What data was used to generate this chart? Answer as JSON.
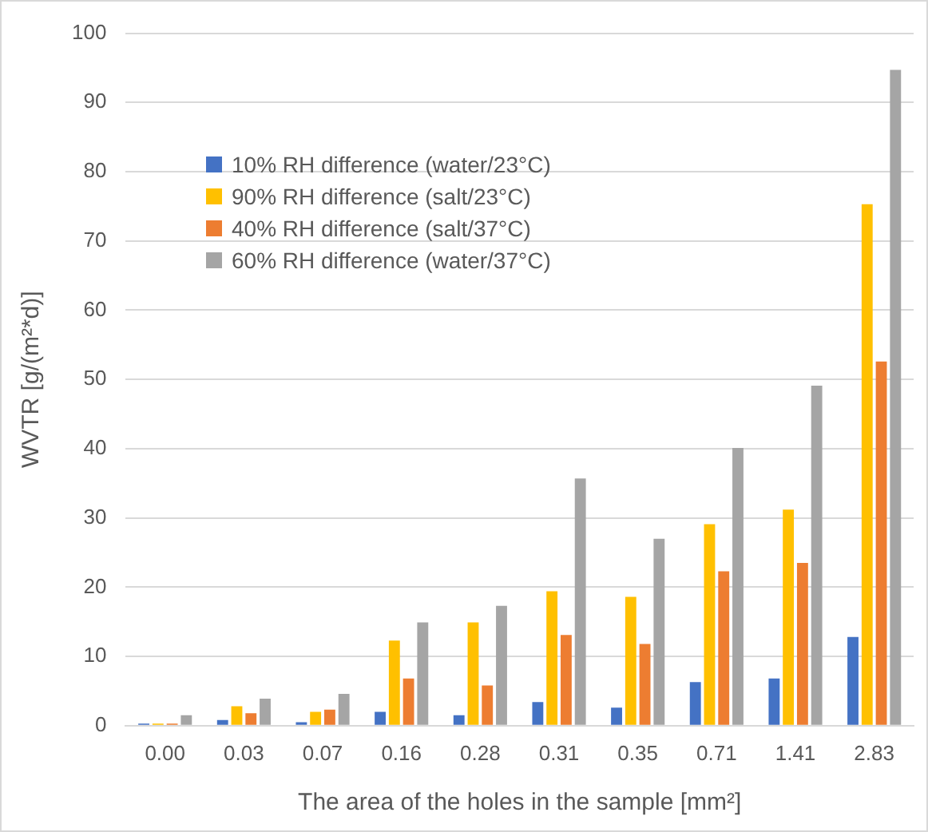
{
  "chart_data": {
    "type": "bar",
    "xlabel": "The area of the holes in the sample [mm²]",
    "ylabel": "WVTR [g/(m²*d)]",
    "categories": [
      "0.00",
      "0.03",
      "0.07",
      "0.16",
      "0.28",
      "0.31",
      "0.35",
      "0.71",
      "1.41",
      "2.83"
    ],
    "series": [
      {
        "name": "10% RH difference (water/23°C)",
        "color": "#4472c4",
        "values": [
          0.3,
          0.8,
          0.5,
          2.0,
          1.5,
          3.4,
          2.6,
          6.3,
          6.8,
          12.8
        ]
      },
      {
        "name": "90% RH difference (salt/23°C)",
        "color": "#ffc000",
        "values": [
          0.3,
          2.8,
          2.0,
          12.3,
          14.9,
          19.4,
          18.6,
          29.1,
          31.2,
          75.3
        ]
      },
      {
        "name": "40% RH difference (salt/37°C)",
        "color": "#ed7d31",
        "values": [
          0.3,
          1.8,
          2.3,
          6.8,
          5.8,
          13.1,
          11.8,
          22.3,
          23.5,
          52.6
        ]
      },
      {
        "name": "60% RH difference (water/37°C)",
        "color": "#a5a5a5",
        "values": [
          1.5,
          3.9,
          4.6,
          14.9,
          17.3,
          35.7,
          27.0,
          40.1,
          49.1,
          94.7
        ]
      }
    ],
    "ylim": [
      0,
      100
    ],
    "yticks": [
      0,
      10,
      20,
      30,
      40,
      50,
      60,
      70,
      80,
      90,
      100
    ],
    "grid": "y",
    "legend": "top left"
  }
}
